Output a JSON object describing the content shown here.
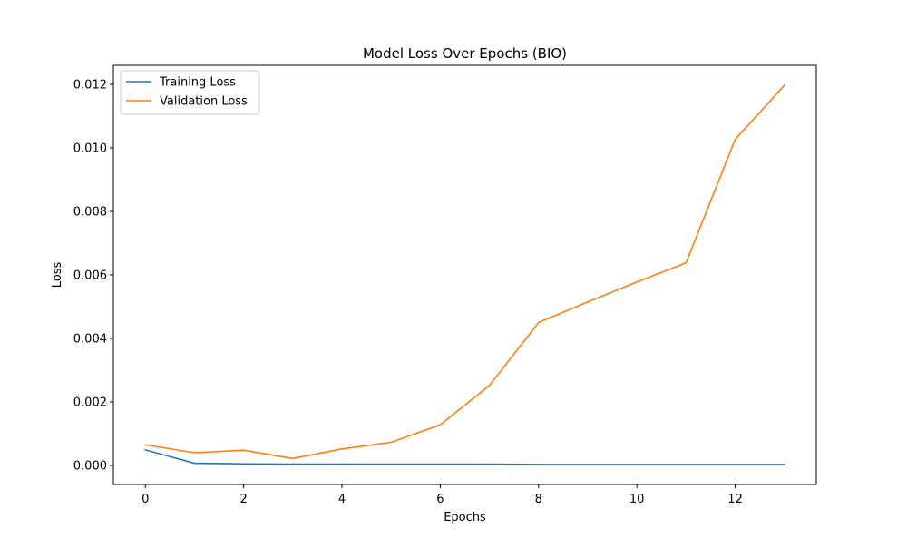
{
  "chart_data": {
    "type": "line",
    "title": "Model Loss Over Epochs (BIO)",
    "xlabel": "Epochs",
    "ylabel": "Loss",
    "xlim": [
      -0.65,
      13.65
    ],
    "ylim": [
      -0.0006,
      0.0126
    ],
    "x_ticks": [
      0,
      2,
      4,
      6,
      8,
      10,
      12
    ],
    "x_tick_labels": [
      "0",
      "2",
      "4",
      "6",
      "8",
      "10",
      "12"
    ],
    "y_ticks": [
      0.0,
      0.002,
      0.004,
      0.006,
      0.008,
      0.01,
      0.012
    ],
    "y_tick_labels": [
      "0.000",
      "0.002",
      "0.004",
      "0.006",
      "0.008",
      "0.010",
      "0.012"
    ],
    "grid": false,
    "legend_position": "top-left",
    "x": [
      0,
      1,
      2,
      3,
      4,
      5,
      6,
      7,
      8,
      9,
      10,
      11,
      12,
      13
    ],
    "series": [
      {
        "name": "Training Loss",
        "color": "#1f77b4",
        "values": [
          0.00049,
          7e-05,
          5e-05,
          4e-05,
          4e-05,
          4e-05,
          4e-05,
          4e-05,
          3e-05,
          3e-05,
          3e-05,
          3e-05,
          3e-05,
          3e-05
        ]
      },
      {
        "name": "Validation Loss",
        "color": "#ff7f0e",
        "values": [
          0.00065,
          0.0004,
          0.00048,
          0.00022,
          0.00052,
          0.00073,
          0.00128,
          0.00252,
          0.0045,
          0.00515,
          0.00578,
          0.00638,
          0.01027,
          0.01197
        ]
      }
    ]
  }
}
